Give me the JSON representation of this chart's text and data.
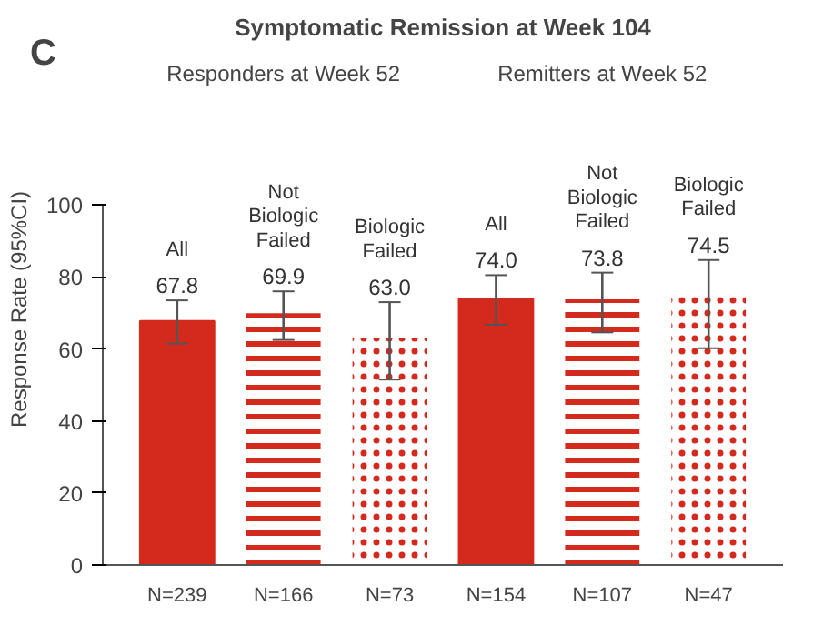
{
  "chart_data": {
    "type": "bar",
    "title": "Symptomatic Remission at Week 104",
    "ylabel": "Response Rate (95%CI)",
    "categories": [
      "N=239",
      "N=166",
      "N=73",
      "N=154",
      "N=107",
      "N=47"
    ],
    "values": [
      67.8,
      69.9,
      63.0,
      74.0,
      73.8,
      74.5
    ],
    "colors": [
      "#d42a1e",
      "#d42a1e",
      "#d42a1e",
      "#d42a1e",
      "#d42a1e",
      "#d42a1e"
    ],
    "errors": [
      [
        61.5,
        73.5
      ],
      [
        62.5,
        76
      ],
      [
        51.5,
        73
      ],
      [
        66.7,
        80.5
      ],
      [
        64.6,
        81.2
      ],
      [
        60.2,
        84.7
      ]
    ],
    "value_labels": [
      "67.8",
      "69.9",
      "63.0",
      "74.0",
      "73.8",
      "74.5"
    ],
    "ylim": [
      0,
      100
    ],
    "yticks": [
      0,
      20,
      40,
      60,
      80,
      100
    ],
    "grid": false,
    "annotations": [
      "C",
      "Responders at Week 52",
      "Remitters at Week 52",
      "All",
      "Not\nBiologic\nFailed",
      "Biologic\nFailed",
      "All",
      "Not\nBiologic\nFailed",
      "Biologic\nFailed"
    ]
  }
}
